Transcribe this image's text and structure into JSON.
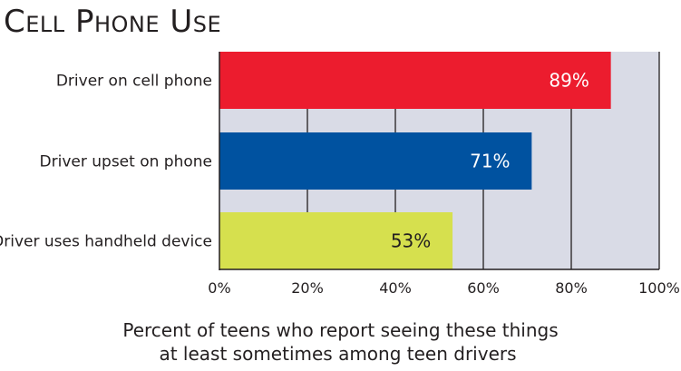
{
  "chart_data": {
    "type": "bar",
    "orientation": "horizontal",
    "title": "Cell Phone Use",
    "categories": [
      "Driver on cell phone",
      "Driver upset on phone",
      "Driver uses handheld device"
    ],
    "values": [
      89,
      71,
      53
    ],
    "data_labels": [
      "89%",
      "71%",
      "53%"
    ],
    "bar_colors": [
      "#ec1c2e",
      "#0052a0",
      "#d6e04e"
    ],
    "label_colors": [
      "#ffffff",
      "#ffffff",
      "#231f20"
    ],
    "xlim": [
      0,
      100
    ],
    "xticks": [
      0,
      20,
      40,
      60,
      80,
      100
    ],
    "xtick_labels": [
      "0%",
      "20%",
      "40%",
      "60%",
      "80%",
      "100%"
    ],
    "plot_background": "#d9dbe6",
    "grid": true,
    "caption_lines": [
      "Percent of teens who report seeing these things",
      "at least sometimes among teen drivers"
    ]
  }
}
